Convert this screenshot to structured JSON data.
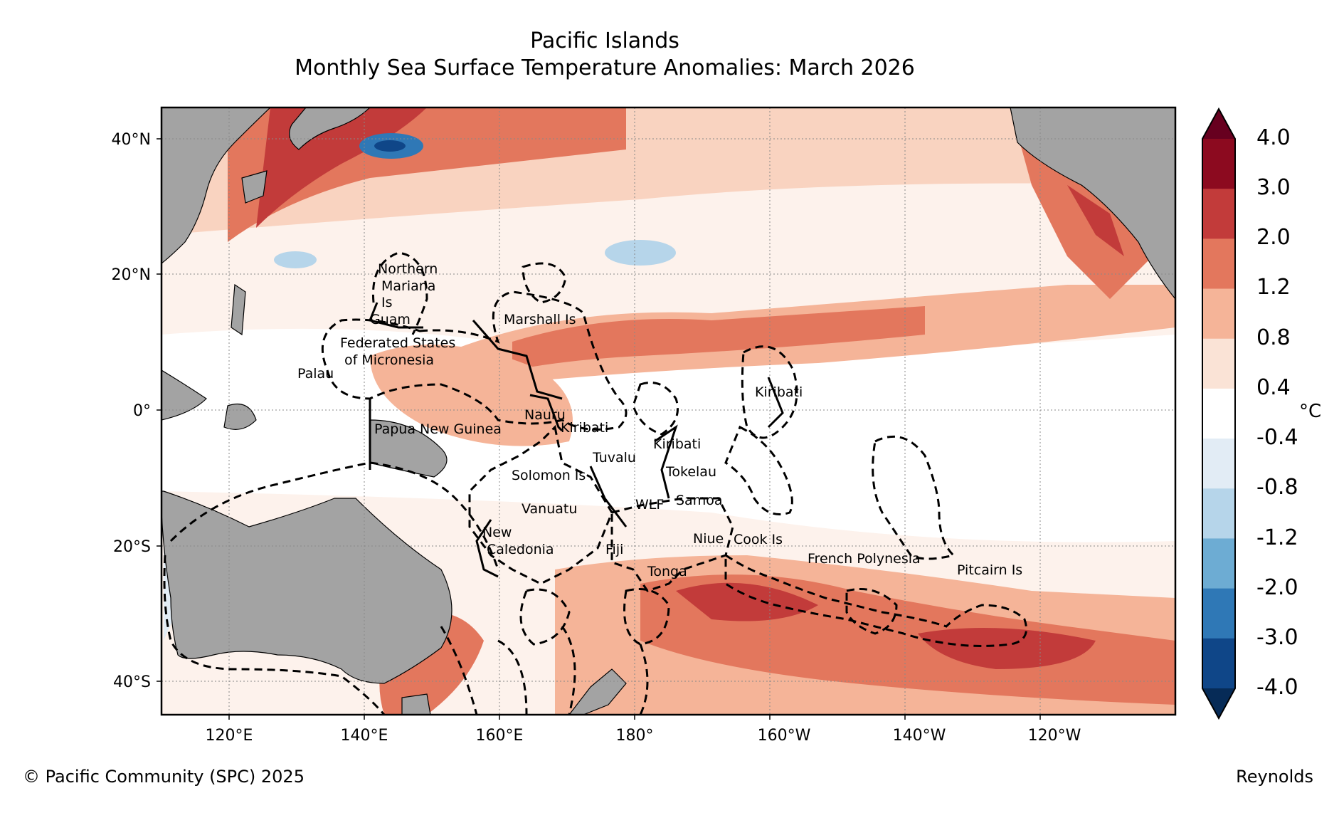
{
  "title": {
    "line1": "Pacific Islands",
    "line2": "Monthly Sea Surface Temperature Anomalies: March 2026"
  },
  "axes": {
    "lat_ticks": [
      "40°N",
      "20°N",
      "0°",
      "20°S",
      "40°S"
    ],
    "lon_ticks": [
      "120°E",
      "140°E",
      "160°E",
      "180°",
      "160°W",
      "140°W",
      "120°W"
    ]
  },
  "colorbar": {
    "unit": "°C",
    "levels": [
      "4.0",
      "3.0",
      "2.0",
      "1.2",
      "0.8",
      "0.4",
      "-0.4",
      "-0.8",
      "-1.2",
      "-2.0",
      "-3.0",
      "-4.0"
    ],
    "colors": [
      "#67001f",
      "#8c0a1f",
      "#c23b3a",
      "#e3775d",
      "#f5b498",
      "#fae3d6",
      "#ffffff",
      "#e2ecf5",
      "#b6d5ea",
      "#6dacd3",
      "#2f78b6",
      "#0f4688",
      "#062b57"
    ]
  },
  "regions": [
    {
      "name": "Northern"
    },
    {
      "name": "Mariana"
    },
    {
      "name": "Is"
    },
    {
      "name": "Guam"
    },
    {
      "name": "Marshall Is"
    },
    {
      "name": "Federated States"
    },
    {
      "name": "of Micronesia"
    },
    {
      "name": "Palau"
    },
    {
      "name": "Nauru"
    },
    {
      "name": "Kiribati"
    },
    {
      "name": "Papua New Guinea"
    },
    {
      "name": "Tuvalu"
    },
    {
      "name": "Kiribati"
    },
    {
      "name": "Kiribati"
    },
    {
      "name": "Tokelau"
    },
    {
      "name": "Solomon Is"
    },
    {
      "name": "Samoa"
    },
    {
      "name": "WLF"
    },
    {
      "name": "Vanuatu"
    },
    {
      "name": "New"
    },
    {
      "name": "Caledonia"
    },
    {
      "name": "Fiji"
    },
    {
      "name": "Niue"
    },
    {
      "name": "Cook Is"
    },
    {
      "name": "Tonga"
    },
    {
      "name": "French Polynesia"
    },
    {
      "name": "Pitcairn Is"
    }
  ],
  "footer": {
    "copyright": "© Pacific Community (SPC) 2025",
    "source": "Reynolds"
  }
}
